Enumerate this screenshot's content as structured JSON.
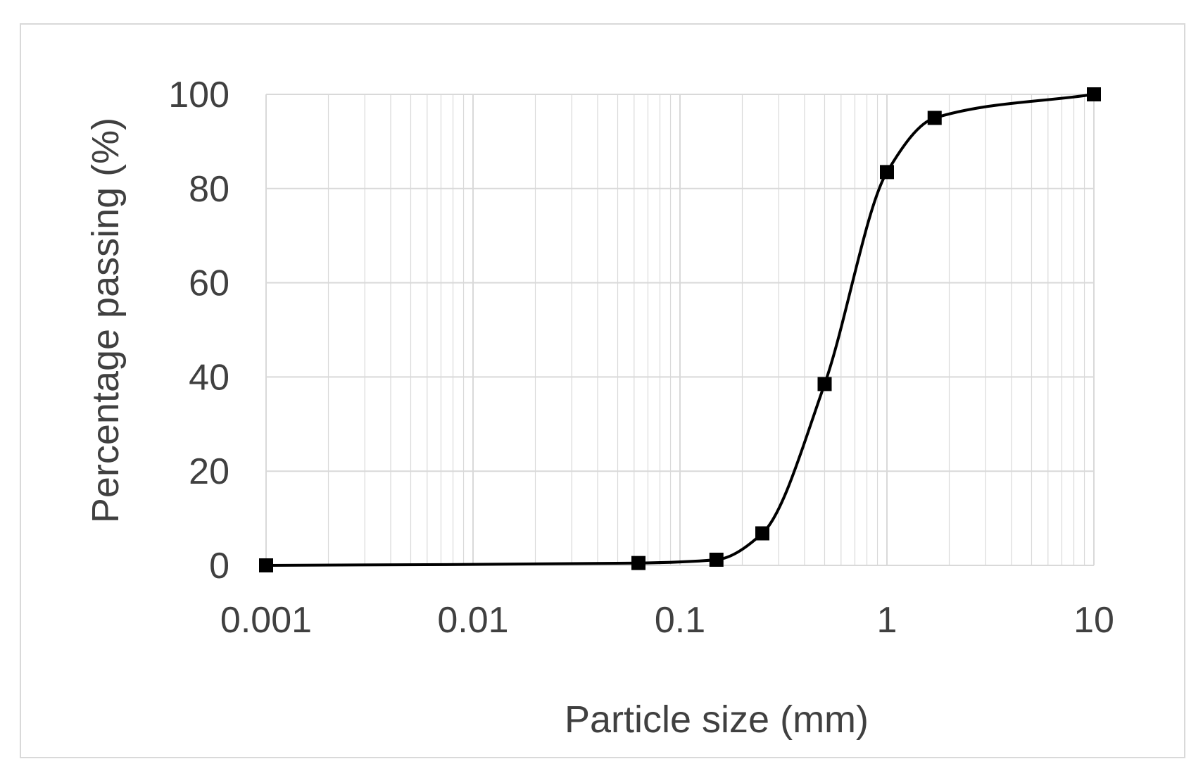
{
  "chart_data": {
    "type": "line",
    "xscale": "log",
    "xlabel": "Particle size (mm)",
    "ylabel": "Percentage passing (%)",
    "xlim": [
      0.001,
      10
    ],
    "ylim": [
      0,
      100
    ],
    "x_ticks": [
      0.001,
      0.01,
      0.1,
      1,
      10
    ],
    "x_tick_labels": [
      "0.001",
      "0.01",
      "0.1",
      "1",
      "10"
    ],
    "y_ticks": [
      0,
      20,
      40,
      60,
      80,
      100
    ],
    "y_tick_labels": [
      "0",
      "20",
      "40",
      "60",
      "80",
      "100"
    ],
    "grid": true,
    "marker": "square",
    "smooth": true,
    "series": [
      {
        "x": [
          0.001,
          0.063,
          0.15,
          0.25,
          0.5,
          1,
          1.7,
          10
        ],
        "y": [
          0,
          0.5,
          1.2,
          6.8,
          38.5,
          83.5,
          95,
          100
        ]
      }
    ],
    "colors": {
      "line": "#000000",
      "grid": "#d9d9d9",
      "text": "#404040",
      "frame": "#d9d9d9"
    }
  }
}
